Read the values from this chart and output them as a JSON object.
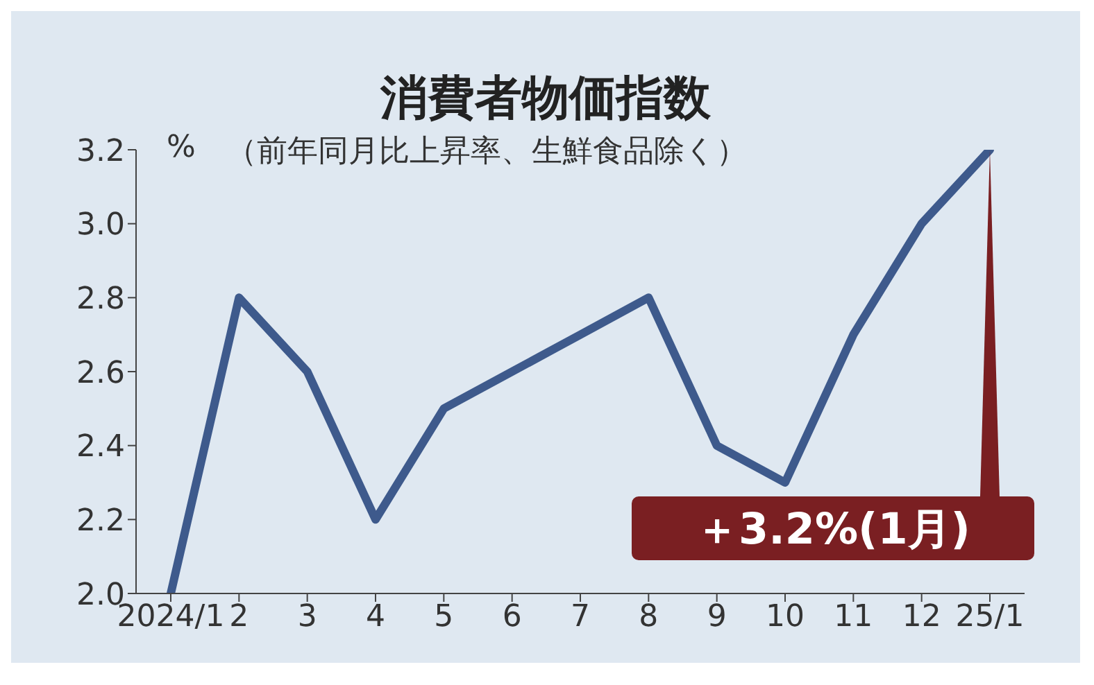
{
  "chart_data": {
    "type": "line",
    "title": "消費者物価指数",
    "subtitle": "（前年同月比上昇率、生鮮食品除く）",
    "ylabel": "%",
    "categories": [
      "2024/1",
      "2",
      "3",
      "4",
      "5",
      "6",
      "7",
      "8",
      "9",
      "10",
      "11",
      "12",
      "25/1"
    ],
    "series": [
      {
        "color": "#3e5a8c",
        "values": [
          2.0,
          2.8,
          2.6,
          2.2,
          2.5,
          2.6,
          2.7,
          2.8,
          2.4,
          2.3,
          2.7,
          3.0,
          3.2
        ]
      }
    ],
    "ylim": [
      2.0,
      3.2
    ],
    "yticks": [
      {
        "value": 2,
        "label": "2.0"
      },
      {
        "value": 2.2,
        "label": "2.2"
      },
      {
        "value": 2.4,
        "label": "2.4"
      },
      {
        "value": 2.6,
        "label": "2.6"
      },
      {
        "value": 2.8,
        "label": "2.8"
      },
      {
        "value": 3,
        "label": "3.0"
      },
      {
        "value": 3.2,
        "label": "3.2"
      }
    ],
    "annotations": [
      {
        "text": "＋3.2%(1月)",
        "x": "25/1",
        "y": 3.2
      }
    ],
    "grid": false,
    "legend": false,
    "marker": "none",
    "line_style": "solid"
  }
}
